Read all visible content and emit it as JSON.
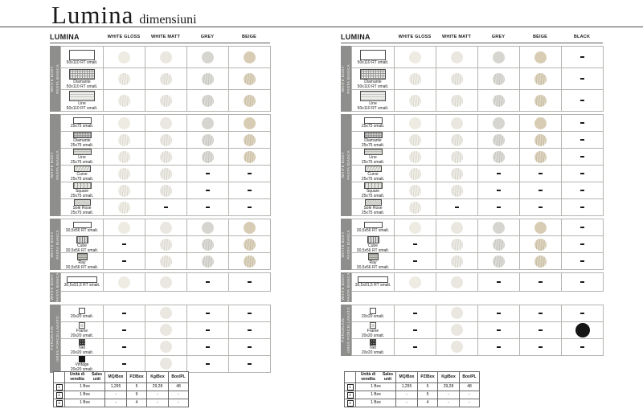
{
  "page": {
    "title": "Lumina",
    "subtitle": "dimensiuni"
  },
  "dot_colors": {
    "white_gloss": "#edebe2",
    "white_matt": "#e9e7df",
    "grey": "#d6d5cf",
    "beige": "#d8cdb4",
    "black": "#181818"
  },
  "tables": [
    {
      "id": "left",
      "title": "LUMINA",
      "columns": [
        {
          "label": "WHITE GLOSS",
          "key": "white_gloss"
        },
        {
          "label": "WHITE MATT",
          "key": "white_matt"
        },
        {
          "label": "GREY",
          "key": "grey"
        },
        {
          "label": "BEIGE",
          "key": "beige"
        }
      ],
      "groups": [
        {
          "label": "PASTA BIANCA",
          "label2": "WHITE BODY",
          "rows": [
            {
              "name": "",
              "size": "50x110 RT smalt.",
              "thumb": "plain-w",
              "cells": [
                "d",
                "d",
                "d",
                "d"
              ]
            },
            {
              "name": "Diamante",
              "size": "50x110 RT smalt.",
              "thumb": "diam-w",
              "cells": [
                "t",
                "t",
                "t",
                "t"
              ]
            },
            {
              "name": "Line",
              "size": "50x110 RT smalt.",
              "thumb": "line-w",
              "cells": [
                "t",
                "t",
                "t",
                "t"
              ]
            }
          ]
        },
        {
          "label": "PASTA BIANCA",
          "label2": "WHITE BODY",
          "rows": [
            {
              "name": "",
              "size": "25x75 smalt.",
              "thumb": "plain-s",
              "cells": [
                "d",
                "d",
                "d",
                "d"
              ]
            },
            {
              "name": "Diamante",
              "size": "25x75 smalt.",
              "thumb": "diam-s",
              "cells": [
                "t",
                "t",
                "t",
                "t"
              ]
            },
            {
              "name": "Line",
              "size": "25x75 smalt.",
              "thumb": "line-s",
              "cells": [
                "t",
                "t",
                "t",
                "t"
              ]
            },
            {
              "name": "Curve",
              "size": "25x75 smalt.",
              "thumb": "curve",
              "cells": [
                "t",
                "t",
                "-",
                "-"
              ]
            },
            {
              "name": "Square",
              "size": "25x75 smalt.",
              "thumb": "square",
              "cells": [
                "t",
                "t",
                "-",
                "-"
              ]
            },
            {
              "name": "Sole Rose",
              "size": "25x75 smalt.",
              "thumb": "sole",
              "cells": [
                "t",
                "-",
                "-",
                "-"
              ]
            }
          ]
        },
        {
          "label": "PASTA BIANCA",
          "label2": "WHITE BODY",
          "rows": [
            {
              "name": "",
              "size": "30,5x56 RT smalt.",
              "thumb": "plain-s",
              "cells": [
                "d",
                "d",
                "d",
                "d"
              ]
            },
            {
              "name": "Cube",
              "size": "30,5x56 RT smalt.",
              "thumb": "cube",
              "cells": [
                "-",
                "t",
                "t",
                "t"
              ]
            },
            {
              "name": "Ray",
              "size": "30,5x56 RT smalt.",
              "thumb": "ray",
              "cells": [
                "-",
                "t",
                "t",
                "t"
              ]
            }
          ]
        },
        {
          "label": "PASTA BIANCA",
          "label2": "WHITE BODY",
          "rows": [
            {
              "name": "",
              "size": "30,5x91,5 RT smalt.",
              "thumb": "plain-l",
              "cells": [
                "d",
                "d",
                "-",
                "-"
              ]
            }
          ]
        },
        {
          "label": "GRES PORCELLANATO",
          "label2": "PORCELAIN",
          "rows": [
            {
              "name": "",
              "size": "20x20 smalt.",
              "thumb": "sq20",
              "cells": [
                "-",
                "d",
                "-",
                "-"
              ]
            },
            {
              "name": "Frame",
              "size": "20x20 smalt.",
              "thumb": "frame20",
              "cells": [
                "-",
                "d",
                "-",
                "-"
              ]
            },
            {
              "name": "Net",
              "size": "20x20 smalt.",
              "thumb": "net20",
              "cells": [
                "-",
                "d",
                "-",
                "-"
              ]
            },
            {
              "name": "Vintage",
              "size": "20x20 smalt.",
              "thumb": "vint20",
              "cells": [
                "-",
                "d",
                "-",
                "-"
              ]
            }
          ]
        }
      ],
      "legend": {
        "headers": [
          "",
          "Unità di vendita|Sales unit",
          "MQ/Box",
          "PZ/Box",
          "Kg/Box",
          "Box/PL"
        ],
        "rows": [
          [
            "1",
            "1 Box",
            "1,295",
            "5",
            "29,28",
            "48"
          ],
          [
            "2",
            "1 Box",
            "-",
            "9",
            "-",
            "-"
          ],
          [
            "3",
            "1 Box",
            "-",
            "4",
            "-",
            "-"
          ]
        ]
      }
    },
    {
      "id": "right",
      "title": "LUMINA",
      "columns": [
        {
          "label": "WHITE GLOSS",
          "key": "white_gloss"
        },
        {
          "label": "WHITE MATT",
          "key": "white_matt"
        },
        {
          "label": "GREY",
          "key": "grey"
        },
        {
          "label": "BEIGE",
          "key": "beige"
        },
        {
          "label": "BLACK",
          "key": "black"
        }
      ],
      "groups": [
        {
          "label": "PASTA BIANCA",
          "label2": "WHITE BODY",
          "rows": [
            {
              "name": "",
              "size": "50x110 RT smalt.",
              "thumb": "plain-w",
              "cells": [
                "d",
                "d",
                "d",
                "d",
                "-"
              ]
            },
            {
              "name": "Diamante",
              "size": "50x110 RT smalt.",
              "thumb": "diam-w",
              "cells": [
                "t",
                "t",
                "t",
                "t",
                "-"
              ]
            },
            {
              "name": "Line",
              "size": "50x110 RT smalt.",
              "thumb": "line-w",
              "cells": [
                "t",
                "t",
                "t",
                "t",
                "-"
              ]
            }
          ]
        },
        {
          "label": "PASTA BIANCA",
          "label2": "WHITE BODY",
          "rows": [
            {
              "name": "",
              "size": "25x75 smalt.",
              "thumb": "plain-s",
              "cells": [
                "d",
                "d",
                "d",
                "d",
                "-"
              ]
            },
            {
              "name": "Diamante",
              "size": "25x75 smalt.",
              "thumb": "diam-s",
              "cells": [
                "t",
                "t",
                "t",
                "t",
                "-"
              ]
            },
            {
              "name": "Line",
              "size": "25x75 smalt.",
              "thumb": "line-s",
              "cells": [
                "t",
                "t",
                "t",
                "t",
                "-"
              ]
            },
            {
              "name": "Curve",
              "size": "25x75 smalt.",
              "thumb": "curve",
              "cells": [
                "t",
                "t",
                "-",
                "-",
                "-"
              ]
            },
            {
              "name": "Square",
              "size": "25x75 smalt.",
              "thumb": "square",
              "cells": [
                "t",
                "t",
                "-",
                "-",
                "-"
              ]
            },
            {
              "name": "Sole Rose",
              "size": "25x75 smalt.",
              "thumb": "sole",
              "cells": [
                "t",
                "-",
                "-",
                "-",
                "-"
              ]
            }
          ]
        },
        {
          "label": "PASTA BIANCA",
          "label2": "WHITE BODY",
          "rows": [
            {
              "name": "",
              "size": "30,5x56 RT smalt.",
              "thumb": "plain-s",
              "cells": [
                "d",
                "d",
                "d",
                "d",
                "-"
              ]
            },
            {
              "name": "Cube",
              "size": "30,5x56 RT smalt.",
              "thumb": "cube",
              "cells": [
                "-",
                "t",
                "t",
                "t",
                "-"
              ]
            },
            {
              "name": "Ray",
              "size": "30,5x56 RT smalt.",
              "thumb": "ray",
              "cells": [
                "-",
                "t",
                "t",
                "t",
                "-"
              ]
            }
          ]
        },
        {
          "label": "PASTA BIANCA",
          "label2": "WHITE BODY",
          "rows": [
            {
              "name": "",
              "size": "30,5x91,5 RT smalt.",
              "thumb": "plain-l",
              "cells": [
                "d",
                "d",
                "-",
                "-",
                "-"
              ]
            }
          ]
        },
        {
          "label": "GRES PORCELLANATO",
          "label2": "PORCELAIN",
          "rows": [
            {
              "name": "",
              "size": "20x20 smalt.",
              "thumb": "sq20",
              "cells": [
                "-",
                "d",
                "-",
                "-",
                "-"
              ]
            },
            {
              "name": "Frame",
              "size": "20x20 smalt.",
              "thumb": "frame20",
              "cells": [
                "-",
                "d",
                "-",
                "-",
                "B"
              ]
            },
            {
              "name": "Net",
              "size": "20x20 smalt.",
              "thumb": "net20",
              "cells": [
                "-",
                "d",
                "-",
                "-",
                "-"
              ]
            }
          ]
        }
      ],
      "legend": {
        "headers": [
          "",
          "Unità di vendita|Sales unit",
          "MQ/Box",
          "PZ/Box",
          "Kg/Box",
          "Box/PL"
        ],
        "rows": [
          [
            "1",
            "1 Box",
            "1,295",
            "5",
            "29,28",
            "48"
          ],
          [
            "2",
            "1 Box",
            "-",
            "5",
            "-",
            "-"
          ],
          [
            "3",
            "1 Box",
            "-",
            "4",
            "-",
            "-"
          ]
        ]
      }
    }
  ]
}
